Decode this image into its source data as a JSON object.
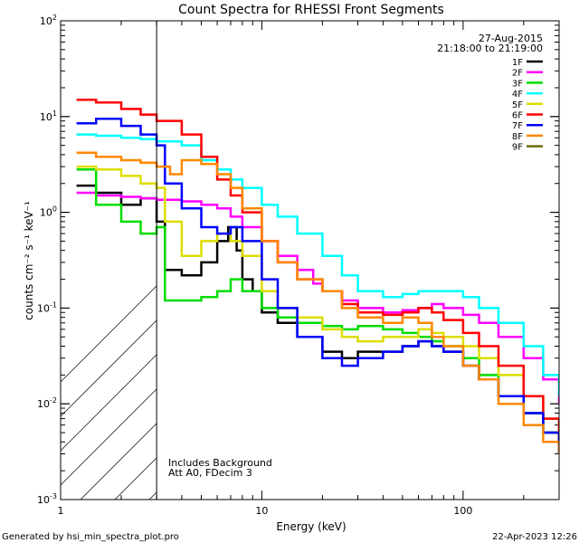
{
  "chart_data": {
    "type": "line",
    "title": "Count Spectra for RHESSI Front Segments",
    "xlabel": "Energy (keV)",
    "ylabel": "counts cm⁻² s⁻¹ keV⁻¹",
    "xscale": "log",
    "yscale": "log",
    "xlim": [
      1,
      300
    ],
    "ylim": [
      0.001,
      100
    ],
    "x_major_ticks": [
      1,
      10,
      100
    ],
    "x_tick_labels": [
      "1",
      "10",
      "100"
    ],
    "y_tick_labels": [
      {
        "base": "10",
        "exp": "-3",
        "value": 0.001
      },
      {
        "base": "10",
        "exp": "-2",
        "value": 0.01
      },
      {
        "base": "10",
        "exp": "-1",
        "value": 0.1
      },
      {
        "base": "10",
        "exp": "0",
        "value": 1
      },
      {
        "base": "10",
        "exp": "1",
        "value": 10
      },
      {
        "base": "10",
        "exp": "2",
        "value": 100
      }
    ],
    "shaded_region": {
      "xmin": 1,
      "xmax": 3,
      "style": "hatched"
    },
    "date": "27-Aug-2015",
    "time_range": "21:18:00 to 21:19:00",
    "annotation_lines": [
      "Includes Background",
      "Att A0, FDecim 3"
    ],
    "series": [
      {
        "name": "1F",
        "color": "#000000",
        "x": [
          1.2,
          1.5,
          2,
          2.5,
          3,
          3.3,
          4,
          5,
          6,
          6.8,
          7.5,
          8,
          9,
          10,
          12,
          15,
          20,
          25,
          30,
          40,
          50,
          60,
          70,
          80,
          100,
          120,
          150,
          200,
          250,
          300
        ],
        "y": [
          1.9,
          1.6,
          1.2,
          1.4,
          0.8,
          0.25,
          0.22,
          0.3,
          0.5,
          0.7,
          0.4,
          0.2,
          0.15,
          0.09,
          0.07,
          0.05,
          0.035,
          0.03,
          0.035,
          0.035,
          0.04,
          0.045,
          0.04,
          0.035,
          0.025,
          0.018,
          0.012,
          0.008,
          0.005,
          0.003
        ]
      },
      {
        "name": "2F",
        "color": "#ff00ff",
        "x": [
          1.2,
          1.5,
          2,
          2.5,
          3,
          4,
          5,
          6,
          7,
          8,
          10,
          12,
          15,
          18,
          20,
          25,
          30,
          40,
          50,
          60,
          70,
          80,
          100,
          120,
          150,
          200,
          250,
          300
        ],
        "y": [
          1.6,
          1.5,
          1.45,
          1.4,
          1.35,
          1.3,
          1.2,
          1.1,
          0.9,
          0.7,
          0.5,
          0.35,
          0.25,
          0.18,
          0.15,
          0.12,
          0.1,
          0.09,
          0.095,
          0.1,
          0.11,
          0.1,
          0.085,
          0.07,
          0.05,
          0.03,
          0.018,
          0.01
        ]
      },
      {
        "name": "3F",
        "color": "#00dd00",
        "x": [
          1.2,
          1.5,
          2,
          2.5,
          3,
          3.3,
          4,
          5,
          6,
          7,
          8,
          10,
          12,
          15,
          20,
          25,
          30,
          40,
          50,
          60,
          70,
          80,
          100,
          120,
          150,
          200,
          250,
          300
        ],
        "y": [
          2.8,
          1.2,
          0.8,
          0.6,
          0.7,
          0.12,
          0.12,
          0.13,
          0.15,
          0.2,
          0.15,
          0.1,
          0.08,
          0.07,
          0.065,
          0.06,
          0.065,
          0.06,
          0.055,
          0.05,
          0.045,
          0.04,
          0.03,
          0.02,
          0.012,
          0.008,
          0.005,
          0.004
        ]
      },
      {
        "name": "4F",
        "color": "#00ffff",
        "x": [
          1.2,
          1.5,
          2,
          2.5,
          3,
          4,
          5,
          6,
          7,
          8,
          10,
          12,
          15,
          20,
          25,
          30,
          40,
          50,
          60,
          70,
          80,
          100,
          120,
          150,
          200,
          250,
          300
        ],
        "y": [
          6.5,
          6.3,
          6,
          5.8,
          5.5,
          5,
          3.5,
          2.8,
          2.2,
          1.8,
          1.2,
          0.9,
          0.6,
          0.35,
          0.22,
          0.15,
          0.13,
          0.14,
          0.15,
          0.15,
          0.15,
          0.13,
          0.1,
          0.07,
          0.04,
          0.02,
          0.012
        ]
      },
      {
        "name": "5F",
        "color": "#dddd00",
        "x": [
          1.2,
          1.5,
          2,
          2.5,
          3,
          3.3,
          4,
          5,
          6,
          7,
          8,
          10,
          12,
          15,
          20,
          25,
          30,
          40,
          50,
          60,
          70,
          80,
          100,
          120,
          150,
          200,
          250,
          300
        ],
        "y": [
          3.0,
          2.8,
          2.4,
          2.0,
          1.8,
          0.8,
          0.35,
          0.5,
          0.6,
          0.5,
          0.35,
          0.15,
          0.1,
          0.08,
          0.06,
          0.05,
          0.045,
          0.05,
          0.05,
          0.06,
          0.055,
          0.05,
          0.04,
          0.03,
          0.02,
          0.012,
          0.007,
          0.005
        ]
      },
      {
        "name": "6F",
        "color": "#ff0000",
        "x": [
          1.2,
          1.5,
          2,
          2.5,
          3,
          4,
          5,
          6,
          7,
          8,
          10,
          12,
          15,
          20,
          25,
          30,
          40,
          50,
          60,
          70,
          80,
          100,
          120,
          150,
          200,
          250,
          300
        ],
        "y": [
          15,
          14,
          12,
          10.5,
          9,
          6.5,
          3.8,
          2.2,
          1.5,
          1.0,
          0.5,
          0.3,
          0.2,
          0.15,
          0.11,
          0.09,
          0.085,
          0.09,
          0.1,
          0.09,
          0.075,
          0.055,
          0.04,
          0.025,
          0.012,
          0.007,
          0.004
        ]
      },
      {
        "name": "7F",
        "color": "#0000ff",
        "x": [
          1.2,
          1.5,
          2,
          2.5,
          3,
          3.3,
          4,
          5,
          6,
          7,
          8,
          10,
          12,
          15,
          20,
          25,
          30,
          40,
          50,
          60,
          70,
          80,
          100,
          120,
          150,
          200,
          250,
          300
        ],
        "y": [
          8.5,
          9.5,
          8,
          6.5,
          5.0,
          2.0,
          1.1,
          0.7,
          0.6,
          0.7,
          0.5,
          0.2,
          0.1,
          0.05,
          0.03,
          0.025,
          0.03,
          0.035,
          0.04,
          0.045,
          0.04,
          0.035,
          0.025,
          0.018,
          0.012,
          0.008,
          0.005,
          0.003
        ]
      },
      {
        "name": "8F",
        "color": "#ff8800",
        "x": [
          1.2,
          1.5,
          2,
          2.5,
          3,
          3.5,
          4,
          5,
          6,
          7,
          8,
          10,
          12,
          15,
          20,
          25,
          30,
          40,
          50,
          60,
          70,
          80,
          100,
          120,
          150,
          200,
          250,
          300
        ],
        "y": [
          4.2,
          3.8,
          3.5,
          3.3,
          3.0,
          2.5,
          3.5,
          3.2,
          2.5,
          1.8,
          1.1,
          0.5,
          0.3,
          0.2,
          0.15,
          0.1,
          0.08,
          0.07,
          0.08,
          0.07,
          0.05,
          0.04,
          0.025,
          0.018,
          0.01,
          0.006,
          0.004,
          0.003
        ]
      },
      {
        "name": "9F",
        "color": "#6b6b00",
        "x": [],
        "y": []
      }
    ]
  },
  "footer": {
    "generated_by": "Generated by hsi_min_spectra_plot.pro",
    "timestamp": "22-Apr-2023 12:26"
  }
}
